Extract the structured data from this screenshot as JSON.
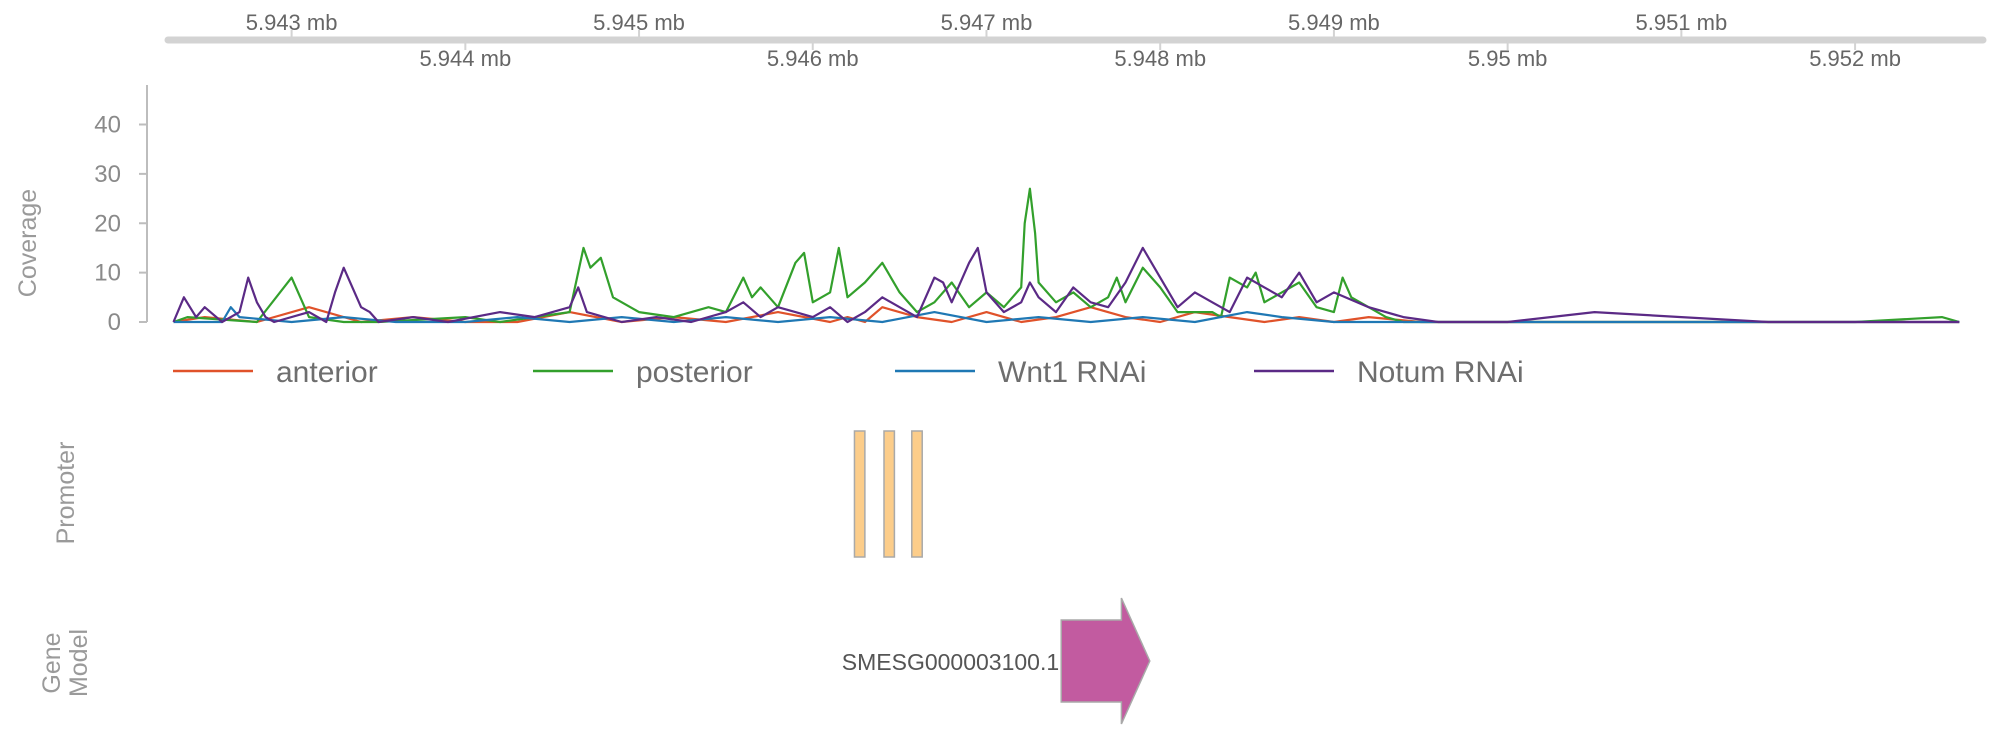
{
  "chart_data": {
    "type": "line",
    "axis_ticks_top": [
      "5.943 mb",
      "5.945 mb",
      "5.947 mb",
      "5.949 mb",
      "5.951 mb"
    ],
    "axis_ticks_bottom": [
      "5.944 mb",
      "5.946 mb",
      "5.948 mb",
      "5.95 mb",
      "5.952 mb"
    ],
    "axis_tick_values_top": [
      5.943,
      5.945,
      5.947,
      5.949,
      5.951
    ],
    "axis_tick_values_bottom": [
      5.944,
      5.946,
      5.948,
      5.95,
      5.952
    ],
    "xlim": [
      5.9423,
      5.95265
    ],
    "coverage": {
      "ylabel": "Coverage",
      "ylim": [
        0,
        48
      ],
      "yticks": [
        "0",
        "10",
        "20",
        "30",
        "40"
      ],
      "ytick_values": [
        0,
        10,
        20,
        30,
        40
      ]
    },
    "series": [
      {
        "name": "anterior",
        "color": "#E0522A",
        "x": [
          5.94232,
          5.9425,
          5.9428,
          5.9431,
          5.9434,
          5.9437,
          5.944,
          5.9443,
          5.9446,
          5.9449,
          5.9452,
          5.9455,
          5.9458,
          5.9461,
          5.9462,
          5.9463,
          5.9464,
          5.9466,
          5.9468,
          5.947,
          5.9472,
          5.9474,
          5.9476,
          5.9478,
          5.948,
          5.9482,
          5.9484,
          5.9486,
          5.9488,
          5.949,
          5.9492,
          5.9495,
          5.95,
          5.951,
          5.9526
        ],
        "y": [
          0,
          1,
          0,
          3,
          0,
          1,
          0,
          0,
          2,
          0,
          1,
          0,
          2,
          0,
          1,
          0,
          3,
          1,
          0,
          2,
          0,
          1,
          3,
          1,
          0,
          2,
          1,
          0,
          1,
          0,
          1,
          0,
          0,
          0,
          0
        ]
      },
      {
        "name": "posterior",
        "color": "#33A02C",
        "x": [
          5.94232,
          5.9424,
          5.9428,
          5.943,
          5.94305,
          5.9431,
          5.9433,
          5.9435,
          5.944,
          5.9442,
          5.9444,
          5.9446,
          5.94468,
          5.94472,
          5.94478,
          5.94485,
          5.945,
          5.9452,
          5.9454,
          5.9455,
          5.9456,
          5.94565,
          5.9457,
          5.9458,
          5.9459,
          5.94595,
          5.946,
          5.9461,
          5.94615,
          5.9462,
          5.9463,
          5.9464,
          5.9465,
          5.9466,
          5.9467,
          5.9468,
          5.9469,
          5.947,
          5.9471,
          5.9472,
          5.94722,
          5.94725,
          5.94728,
          5.9473,
          5.9474,
          5.9475,
          5.9476,
          5.9477,
          5.94775,
          5.9478,
          5.9479,
          5.948,
          5.9481,
          5.9482,
          5.9483,
          5.94835,
          5.9484,
          5.9485,
          5.94855,
          5.9486,
          5.9487,
          5.9488,
          5.9489,
          5.949,
          5.94905,
          5.9491,
          5.9492,
          5.9493,
          5.9494,
          5.9495,
          5.9496,
          5.95,
          5.9505,
          5.951,
          5.9515,
          5.952,
          5.9525,
          5.9526
        ],
        "y": [
          0,
          1,
          0,
          9,
          5,
          1,
          0,
          0,
          1,
          0,
          1,
          2,
          15,
          11,
          13,
          5,
          2,
          1,
          3,
          2,
          9,
          5,
          7,
          3,
          12,
          14,
          4,
          6,
          15,
          5,
          8,
          12,
          6,
          2,
          4,
          8,
          3,
          6,
          3,
          7,
          20,
          27,
          18,
          8,
          4,
          6,
          3,
          5,
          9,
          4,
          11,
          7,
          2,
          2,
          2,
          1,
          9,
          7,
          10,
          4,
          6,
          8,
          3,
          2,
          9,
          5,
          3,
          1,
          0,
          0,
          0,
          0,
          0,
          0,
          0,
          0,
          1,
          0
        ]
      },
      {
        "name": "Wnt1 RNAi",
        "color": "#1F78B4",
        "x": [
          5.94232,
          5.9426,
          5.94265,
          5.9427,
          5.943,
          5.9433,
          5.9436,
          5.944,
          5.9443,
          5.9446,
          5.9449,
          5.9452,
          5.9455,
          5.9458,
          5.9461,
          5.9464,
          5.9467,
          5.947,
          5.9473,
          5.9476,
          5.9479,
          5.9482,
          5.9485,
          5.9487,
          5.949,
          5.9495,
          5.95,
          5.951,
          5.9526
        ],
        "y": [
          0,
          0,
          3,
          1,
          0,
          1,
          0,
          0,
          1,
          0,
          1,
          0,
          1,
          0,
          1,
          0,
          2,
          0,
          1,
          0,
          1,
          0,
          2,
          1,
          0,
          0,
          0,
          0,
          0
        ]
      },
      {
        "name": "Notum RNAi",
        "color": "#5B2A86",
        "x": [
          5.94232,
          5.94238,
          5.94245,
          5.9425,
          5.9426,
          5.9427,
          5.94275,
          5.9428,
          5.94285,
          5.9429,
          5.9431,
          5.9432,
          5.94325,
          5.9433,
          5.9434,
          5.94345,
          5.9435,
          5.9437,
          5.9439,
          5.9442,
          5.9444,
          5.9446,
          5.94465,
          5.9447,
          5.9448,
          5.9449,
          5.9451,
          5.9453,
          5.9455,
          5.9456,
          5.9457,
          5.9458,
          5.9459,
          5.946,
          5.9461,
          5.9462,
          5.9463,
          5.9464,
          5.9465,
          5.9466,
          5.9467,
          5.94675,
          5.9468,
          5.9469,
          5.94695,
          5.947,
          5.9471,
          5.9472,
          5.94725,
          5.9473,
          5.9474,
          5.9475,
          5.9476,
          5.9477,
          5.9478,
          5.9479,
          5.948,
          5.9481,
          5.9482,
          5.9483,
          5.9484,
          5.9485,
          5.9486,
          5.9487,
          5.9488,
          5.9489,
          5.949,
          5.9492,
          5.9494,
          5.9496,
          5.95,
          5.9505,
          5.951,
          5.9515,
          5.952,
          5.9526
        ],
        "y": [
          0,
          5,
          1,
          3,
          0,
          2,
          9,
          4,
          1,
          0,
          2,
          0,
          6,
          11,
          3,
          2,
          0,
          1,
          0,
          2,
          1,
          3,
          7,
          2,
          1,
          0,
          1,
          0,
          2,
          4,
          1,
          3,
          2,
          1,
          3,
          0,
          2,
          5,
          3,
          1,
          9,
          8,
          4,
          12,
          15,
          6,
          2,
          4,
          8,
          5,
          2,
          7,
          4,
          3,
          8,
          15,
          9,
          3,
          6,
          4,
          2,
          9,
          7,
          5,
          10,
          4,
          6,
          3,
          1,
          0,
          0,
          2,
          1,
          0,
          0,
          0
        ]
      }
    ],
    "legend": [
      "anterior",
      "posterior",
      "Wnt1 RNAi",
      "Notum RNAi"
    ],
    "promoter": {
      "title": "Promoter",
      "color": "#FCCD8A",
      "regions": [
        [
          5.94624,
          5.9463
        ],
        [
          5.94641,
          5.94647
        ],
        [
          5.94657,
          5.94663
        ]
      ]
    },
    "gene_model": {
      "title_line1": "Gene",
      "title_line2": "Model",
      "color": "#C25BA0",
      "genes": [
        {
          "id": "SMESG000003100.1",
          "start": 5.94743,
          "end": 5.94794,
          "strand": "+"
        }
      ]
    }
  }
}
